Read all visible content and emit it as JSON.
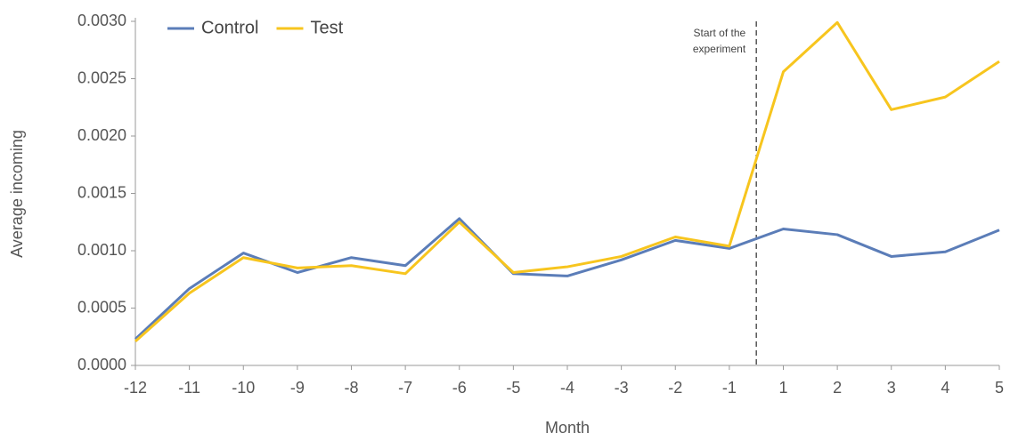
{
  "chart_data": {
    "type": "line",
    "xlabel": "Month",
    "ylabel": "Average incoming",
    "categories": [
      -12,
      -11,
      -10,
      -9,
      -8,
      -7,
      -6,
      -5,
      -4,
      -3,
      -2,
      -1,
      1,
      2,
      3,
      4,
      5
    ],
    "series": [
      {
        "name": "Control",
        "color": "#5b7db8",
        "values": [
          0.00023,
          0.00067,
          0.00098,
          0.00081,
          0.00094,
          0.00087,
          0.00128,
          0.0008,
          0.00078,
          0.00092,
          0.00109,
          0.00102,
          0.00119,
          0.00114,
          0.00095,
          0.00099,
          0.00118
        ]
      },
      {
        "name": "Test",
        "color": "#f7c51e",
        "values": [
          0.00021,
          0.00063,
          0.00094,
          0.00085,
          0.00087,
          0.0008,
          0.00125,
          0.00081,
          0.00086,
          0.00095,
          0.00112,
          0.00104,
          0.00256,
          0.00299,
          0.00223,
          0.00234,
          0.00265
        ]
      }
    ],
    "ylim": [
      0,
      0.003
    ],
    "yticks": [
      {
        "value": 0,
        "label": "0.0000"
      },
      {
        "value": 0.0005,
        "label": "0.0005"
      },
      {
        "value": 0.001,
        "label": "0.0010"
      },
      {
        "value": 0.0015,
        "label": "0.0015"
      },
      {
        "value": 0.002,
        "label": "0.0020"
      },
      {
        "value": 0.0025,
        "label": "0.0025"
      },
      {
        "value": 0.003,
        "label": "0.0030"
      }
    ],
    "annotation": [
      "Start of the",
      "experiment"
    ],
    "legend": "upper left",
    "grid": false
  }
}
